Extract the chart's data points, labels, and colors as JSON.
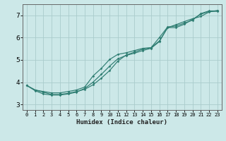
{
  "xlabel": "Humidex (Indice chaleur)",
  "background_color": "#cce8e8",
  "grid_color": "#aacccc",
  "line_color": "#2e7d72",
  "xlim": [
    -0.5,
    23.5
  ],
  "ylim": [
    2.75,
    7.5
  ],
  "yticks": [
    3,
    4,
    5,
    6,
    7
  ],
  "xticks": [
    0,
    1,
    2,
    3,
    4,
    5,
    6,
    7,
    8,
    9,
    10,
    11,
    12,
    13,
    14,
    15,
    16,
    17,
    18,
    19,
    20,
    21,
    22,
    23
  ],
  "series": [
    [
      3.85,
      3.62,
      3.47,
      3.42,
      3.42,
      3.47,
      3.55,
      3.72,
      4.0,
      4.35,
      4.72,
      5.05,
      5.2,
      5.3,
      5.42,
      5.52,
      5.82,
      6.45,
      6.45,
      6.6,
      6.82,
      7.05,
      7.18,
      7.18
    ],
    [
      3.85,
      3.65,
      3.55,
      3.45,
      3.45,
      3.5,
      3.58,
      3.68,
      3.88,
      4.18,
      4.52,
      4.95,
      5.22,
      5.35,
      5.48,
      5.55,
      6.0,
      6.48,
      6.52,
      6.65,
      6.78,
      7.08,
      7.2,
      7.2
    ],
    [
      3.85,
      3.65,
      3.58,
      3.52,
      3.52,
      3.58,
      3.65,
      3.78,
      4.28,
      4.62,
      5.02,
      5.25,
      5.32,
      5.42,
      5.52,
      5.55,
      5.85,
      6.45,
      6.58,
      6.72,
      6.85,
      6.95,
      7.15,
      7.22
    ]
  ]
}
